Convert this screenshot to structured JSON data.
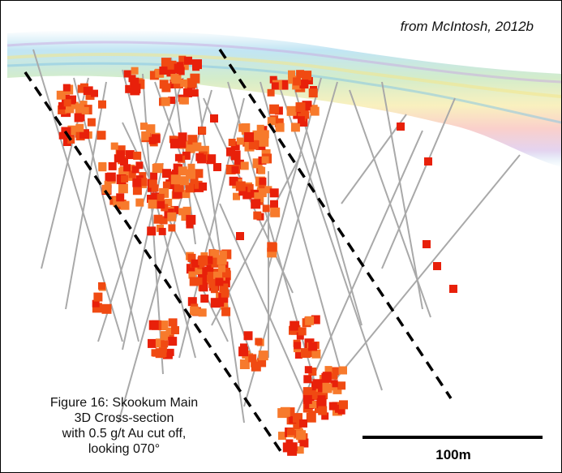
{
  "source_note": "from McIntosh, 2012b",
  "caption": {
    "line1": "Figure 16: Skookum Main",
    "line2": "3D Cross-section",
    "line3": "with 0.5 g/t Au cut off,",
    "line4": "looking 070°"
  },
  "scale_bar": {
    "label": "100m"
  },
  "colors": {
    "block_dark": "#e8200a",
    "block_mid": "#f04a12",
    "block_light": "#f77a2c",
    "drill_trace": "#a9a9a9",
    "zone_outline": "#000000",
    "topography_band": [
      "#7fc4e6",
      "#b6e0a8",
      "#f4e58a",
      "#f6a9a0",
      "#c9a8e0",
      "#8fd0ea"
    ]
  }
}
